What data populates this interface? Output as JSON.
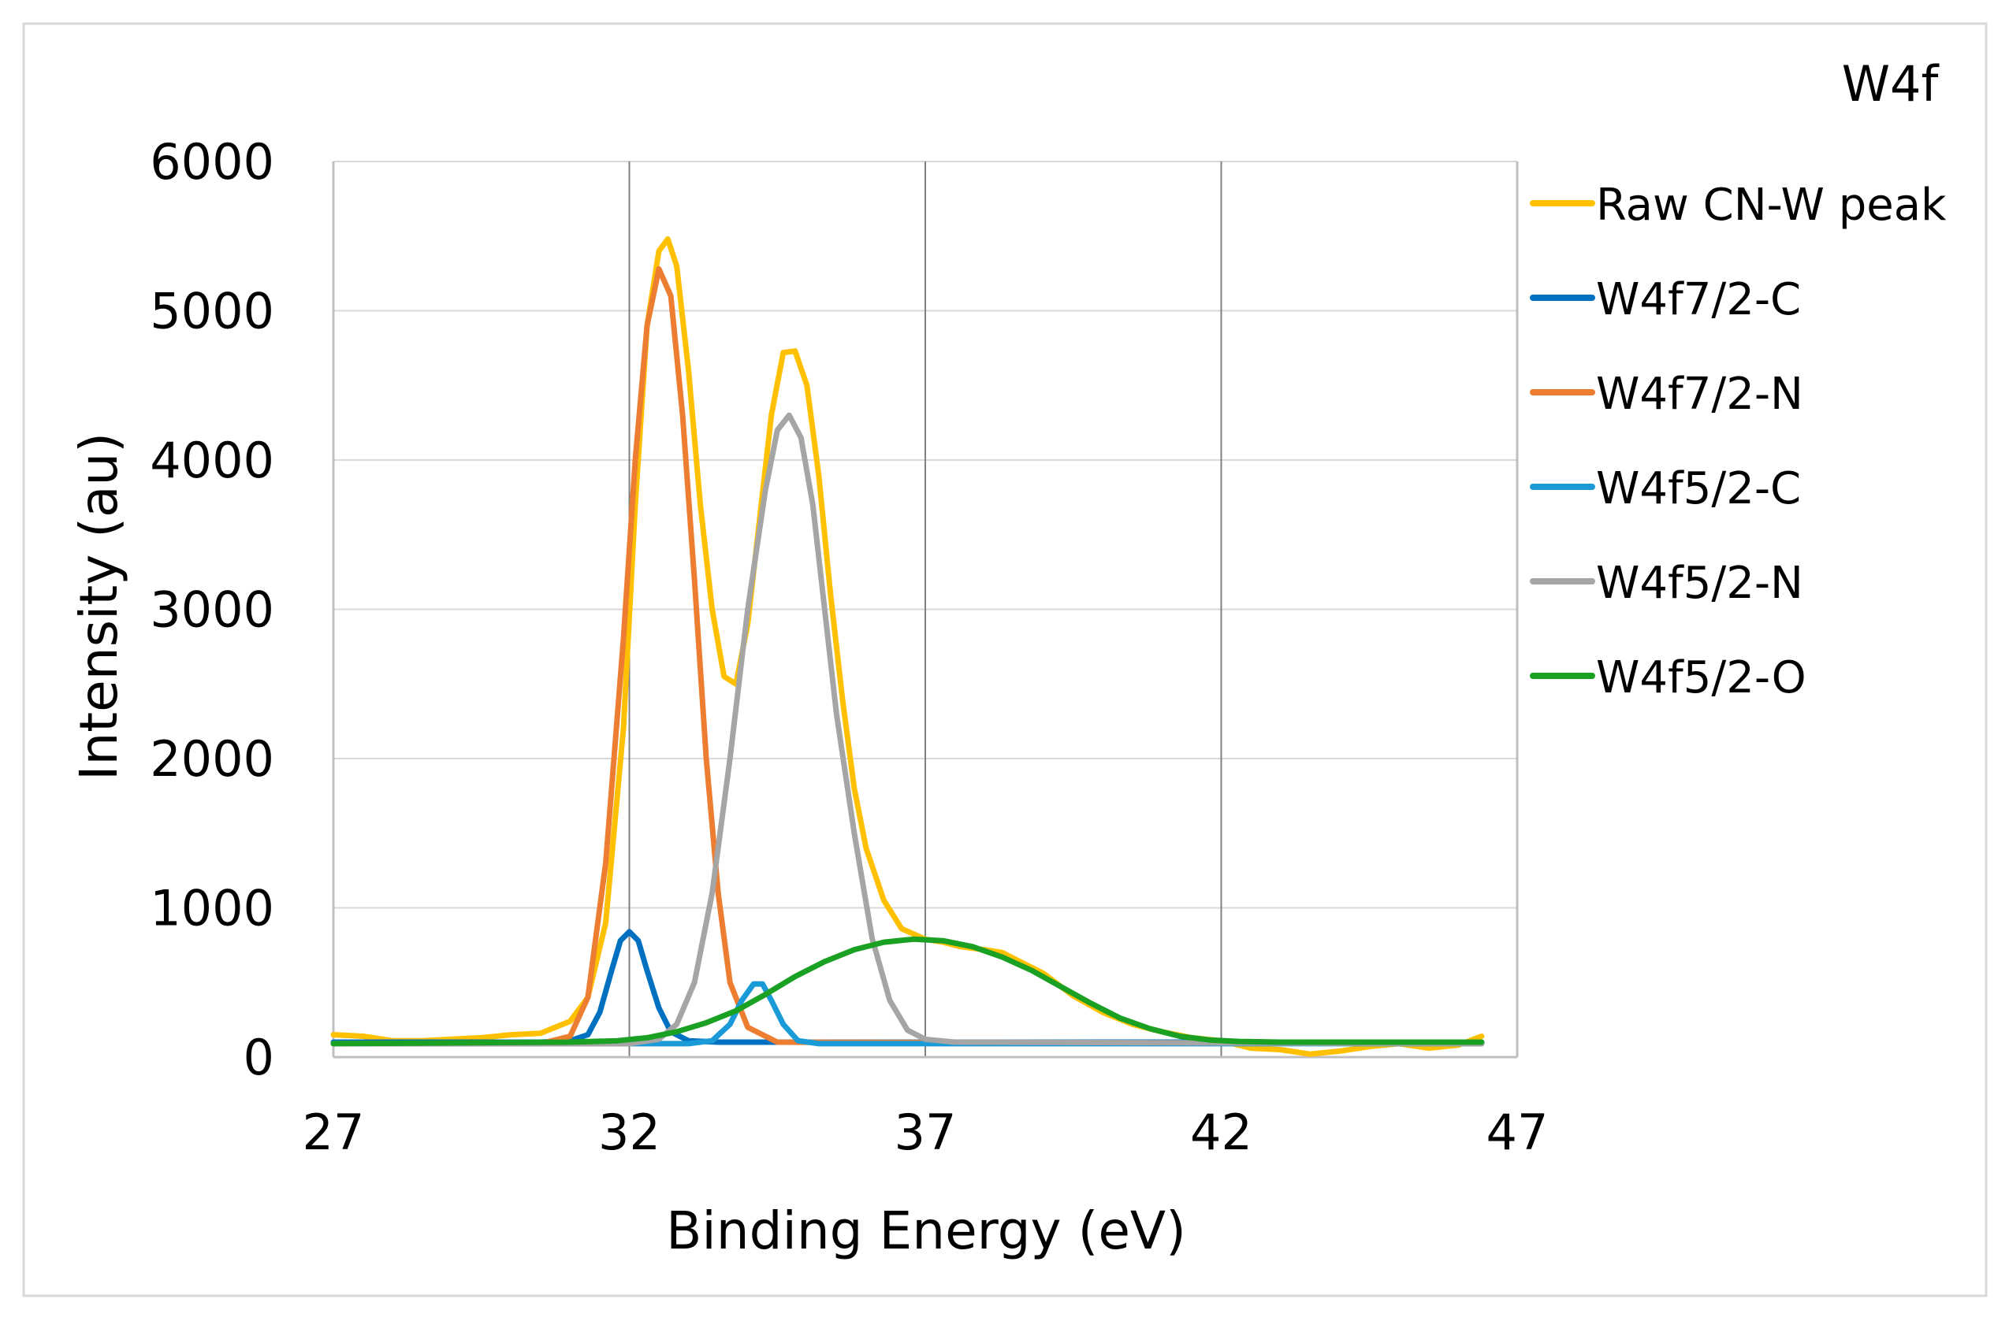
{
  "chart_data": {
    "type": "line",
    "title": "W4f",
    "xlabel": "Binding Energy (eV)",
    "ylabel": "Intensity (au)",
    "xlim": [
      27,
      47
    ],
    "ylim": [
      0,
      6000
    ],
    "xticks": [
      27,
      32,
      37,
      42,
      47
    ],
    "yticks": [
      0,
      1000,
      2000,
      3000,
      4000,
      5000,
      6000
    ],
    "x_grid": true,
    "y_grid": true,
    "legend_position": "right",
    "series": [
      {
        "name": "Raw CN-W peak",
        "color": "#FFC000",
        "points": [
          [
            27.0,
            150
          ],
          [
            27.5,
            140
          ],
          [
            28.0,
            110
          ],
          [
            28.5,
            110
          ],
          [
            29.0,
            120
          ],
          [
            29.5,
            130
          ],
          [
            30.0,
            150
          ],
          [
            30.5,
            160
          ],
          [
            31.0,
            240
          ],
          [
            31.3,
            400
          ],
          [
            31.6,
            900
          ],
          [
            31.9,
            2200
          ],
          [
            32.1,
            3700
          ],
          [
            32.3,
            4900
          ],
          [
            32.5,
            5400
          ],
          [
            32.65,
            5480
          ],
          [
            32.8,
            5300
          ],
          [
            33.0,
            4600
          ],
          [
            33.2,
            3700
          ],
          [
            33.4,
            3000
          ],
          [
            33.6,
            2550
          ],
          [
            33.8,
            2500
          ],
          [
            34.0,
            2900
          ],
          [
            34.2,
            3600
          ],
          [
            34.4,
            4300
          ],
          [
            34.6,
            4720
          ],
          [
            34.8,
            4730
          ],
          [
            35.0,
            4500
          ],
          [
            35.2,
            3900
          ],
          [
            35.4,
            3100
          ],
          [
            35.6,
            2400
          ],
          [
            35.8,
            1800
          ],
          [
            36.0,
            1400
          ],
          [
            36.3,
            1050
          ],
          [
            36.6,
            860
          ],
          [
            37.0,
            790
          ],
          [
            37.3,
            770
          ],
          [
            37.6,
            740
          ],
          [
            38.0,
            720
          ],
          [
            38.3,
            700
          ],
          [
            38.6,
            640
          ],
          [
            39.0,
            560
          ],
          [
            39.5,
            410
          ],
          [
            40.0,
            300
          ],
          [
            40.5,
            220
          ],
          [
            41.0,
            170
          ],
          [
            41.5,
            130
          ],
          [
            42.0,
            110
          ],
          [
            42.5,
            60
          ],
          [
            43.0,
            50
          ],
          [
            43.5,
            20
          ],
          [
            44.0,
            40
          ],
          [
            44.5,
            70
          ],
          [
            45.0,
            90
          ],
          [
            45.5,
            60
          ],
          [
            46.0,
            80
          ],
          [
            46.4,
            140
          ]
        ]
      },
      {
        "name": "W4f7/2-C",
        "color": "#0070C0",
        "points": [
          [
            27.0,
            100
          ],
          [
            30.5,
            100
          ],
          [
            31.0,
            110
          ],
          [
            31.3,
            150
          ],
          [
            31.5,
            300
          ],
          [
            31.7,
            580
          ],
          [
            31.85,
            780
          ],
          [
            32.0,
            840
          ],
          [
            32.15,
            780
          ],
          [
            32.3,
            580
          ],
          [
            32.5,
            330
          ],
          [
            32.7,
            170
          ],
          [
            33.0,
            110
          ],
          [
            33.5,
            100
          ],
          [
            46.4,
            100
          ]
        ]
      },
      {
        "name": "W4f7/2-N",
        "color": "#ED7D31",
        "points": [
          [
            27.0,
            90
          ],
          [
            30.5,
            90
          ],
          [
            31.0,
            140
          ],
          [
            31.3,
            400
          ],
          [
            31.6,
            1300
          ],
          [
            31.9,
            2800
          ],
          [
            32.1,
            4000
          ],
          [
            32.3,
            4900
          ],
          [
            32.5,
            5280
          ],
          [
            32.7,
            5100
          ],
          [
            32.9,
            4300
          ],
          [
            33.1,
            3200
          ],
          [
            33.3,
            2000
          ],
          [
            33.5,
            1100
          ],
          [
            33.7,
            500
          ],
          [
            34.0,
            200
          ],
          [
            34.5,
            100
          ],
          [
            46.4,
            90
          ]
        ]
      },
      {
        "name": "W4f5/2-C",
        "color": "#1A9BD7",
        "points": [
          [
            27.0,
            90
          ],
          [
            33.0,
            90
          ],
          [
            33.4,
            110
          ],
          [
            33.7,
            220
          ],
          [
            33.9,
            380
          ],
          [
            34.1,
            490
          ],
          [
            34.25,
            490
          ],
          [
            34.4,
            380
          ],
          [
            34.6,
            220
          ],
          [
            34.85,
            110
          ],
          [
            35.2,
            90
          ],
          [
            46.4,
            90
          ]
        ]
      },
      {
        "name": "W4f5/2-N",
        "color": "#A5A5A5",
        "points": [
          [
            27.0,
            90
          ],
          [
            32.0,
            90
          ],
          [
            32.5,
            120
          ],
          [
            32.8,
            220
          ],
          [
            33.1,
            500
          ],
          [
            33.4,
            1100
          ],
          [
            33.7,
            2000
          ],
          [
            34.0,
            3000
          ],
          [
            34.3,
            3800
          ],
          [
            34.5,
            4200
          ],
          [
            34.7,
            4300
          ],
          [
            34.9,
            4150
          ],
          [
            35.1,
            3700
          ],
          [
            35.3,
            3000
          ],
          [
            35.5,
            2300
          ],
          [
            35.8,
            1500
          ],
          [
            36.1,
            800
          ],
          [
            36.4,
            380
          ],
          [
            36.7,
            180
          ],
          [
            37.0,
            120
          ],
          [
            37.5,
            100
          ],
          [
            46.4,
            90
          ]
        ]
      },
      {
        "name": "W4f5/2-O",
        "color": "#1AA022",
        "points": [
          [
            27.0,
            90
          ],
          [
            31.0,
            100
          ],
          [
            31.8,
            110
          ],
          [
            32.3,
            130
          ],
          [
            32.8,
            170
          ],
          [
            33.3,
            230
          ],
          [
            33.8,
            310
          ],
          [
            34.3,
            420
          ],
          [
            34.8,
            540
          ],
          [
            35.3,
            640
          ],
          [
            35.8,
            720
          ],
          [
            36.3,
            770
          ],
          [
            36.8,
            790
          ],
          [
            37.3,
            780
          ],
          [
            37.8,
            740
          ],
          [
            38.3,
            670
          ],
          [
            38.8,
            580
          ],
          [
            39.3,
            470
          ],
          [
            39.8,
            360
          ],
          [
            40.3,
            260
          ],
          [
            40.8,
            190
          ],
          [
            41.3,
            140
          ],
          [
            41.8,
            115
          ],
          [
            42.3,
            105
          ],
          [
            43.0,
            100
          ],
          [
            46.4,
            100
          ]
        ]
      }
    ]
  }
}
